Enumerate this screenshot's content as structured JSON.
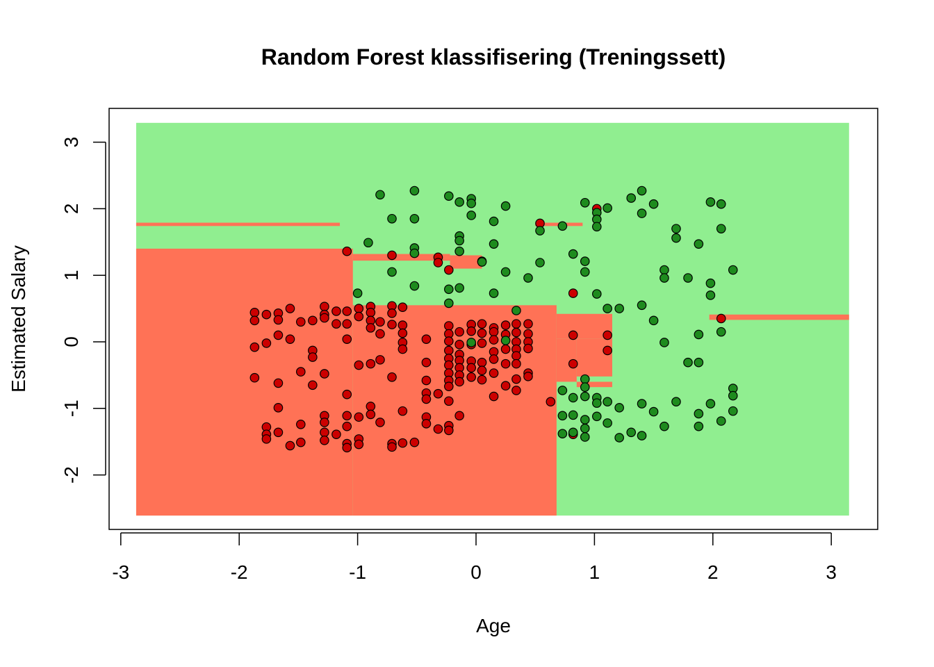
{
  "chart_data": {
    "type": "scatter",
    "title": "Random Forest klassifisering (Treningssett)",
    "xlabel": "Age",
    "ylabel": "Estimated Salary",
    "xlim": [
      -3.0,
      3.2
    ],
    "ylim": [
      -2.8,
      3.3
    ],
    "x_ticks": [
      -3,
      -2,
      -1,
      0,
      1,
      2,
      3
    ],
    "y_ticks": [
      -2,
      -1,
      0,
      1,
      2,
      3
    ],
    "x_tick_labels": [
      "-3",
      "-2",
      "-1",
      "0",
      "1",
      "2",
      "3"
    ],
    "y_tick_labels": [
      "-2",
      "-1",
      "0",
      "1",
      "2",
      "3"
    ],
    "grid": false,
    "legend": "none",
    "colors": {
      "region_0": "#FF7256",
      "region_1": "#90EE90",
      "point_0": "#CC0000",
      "point_1": "#1E8B1E",
      "point_stroke": "#000000",
      "frame": "#000000"
    },
    "decision_regions": [
      {
        "class": 1,
        "x": [
          -2.87,
          3.15
        ],
        "y": [
          -2.61,
          3.29
        ]
      },
      {
        "class": 0,
        "x": [
          -2.87,
          -1.04
        ],
        "y": [
          -2.61,
          1.4
        ]
      },
      {
        "class": 0,
        "x": [
          -1.04,
          0.68
        ],
        "y": [
          -2.61,
          0.55
        ]
      },
      {
        "class": 0,
        "x": [
          0.68,
          1.15
        ],
        "y": [
          0.05,
          0.42
        ]
      },
      {
        "class": 0,
        "x": [
          0.68,
          0.85
        ],
        "y": [
          -0.6,
          0.05
        ]
      },
      {
        "class": 0,
        "x": [
          0.85,
          1.15
        ],
        "y": [
          -0.52,
          0.05
        ]
      },
      {
        "class": 0,
        "x": [
          0.85,
          1.15
        ],
        "y": [
          -0.68,
          -0.6
        ]
      },
      {
        "class": 0,
        "x": [
          -2.87,
          -1.15
        ],
        "y": [
          1.74,
          1.79
        ]
      },
      {
        "class": 0,
        "x": [
          -1.04,
          -0.22
        ],
        "y": [
          1.22,
          1.32
        ]
      },
      {
        "class": 0,
        "x": [
          -0.22,
          0.05
        ],
        "y": [
          1.1,
          1.3
        ]
      },
      {
        "class": 0,
        "x": [
          0.5,
          0.9
        ],
        "y": [
          1.74,
          1.79
        ]
      },
      {
        "class": 0,
        "x": [
          1.97,
          3.15
        ],
        "y": [
          0.33,
          0.41
        ]
      }
    ],
    "series": [
      {
        "class": 0,
        "points": [
          [
            -1.87,
            0.44
          ],
          [
            -1.87,
            0.32
          ],
          [
            -1.87,
            -0.08
          ],
          [
            -1.87,
            -0.54
          ],
          [
            -1.77,
            0.41
          ],
          [
            -1.77,
            -0.02
          ],
          [
            -1.77,
            -1.28
          ],
          [
            -1.77,
            -1.39
          ],
          [
            -1.77,
            -1.46
          ],
          [
            -1.67,
            0.43
          ],
          [
            -1.67,
            0.33
          ],
          [
            -1.67,
            0.1
          ],
          [
            -1.67,
            -0.62
          ],
          [
            -1.67,
            -0.99
          ],
          [
            -1.67,
            -1.36
          ],
          [
            -1.57,
            0.5
          ],
          [
            -1.57,
            0.04
          ],
          [
            -1.57,
            -1.56
          ],
          [
            -1.48,
            0.3
          ],
          [
            -1.48,
            -0.45
          ],
          [
            -1.48,
            -1.24
          ],
          [
            -1.48,
            -1.51
          ],
          [
            -1.38,
            0.32
          ],
          [
            -1.38,
            -0.13
          ],
          [
            -1.38,
            -0.23
          ],
          [
            -1.38,
            -0.65
          ],
          [
            -1.28,
            0.53
          ],
          [
            -1.28,
            0.41
          ],
          [
            -1.28,
            0.36
          ],
          [
            -1.28,
            -0.48
          ],
          [
            -1.28,
            -1.11
          ],
          [
            -1.28,
            -1.21
          ],
          [
            -1.28,
            -1.36
          ],
          [
            -1.28,
            -1.48
          ],
          [
            -1.18,
            0.46
          ],
          [
            -1.18,
            0.27
          ],
          [
            -1.18,
            -1.39
          ],
          [
            -1.09,
            1.36
          ],
          [
            -1.09,
            0.46
          ],
          [
            -1.09,
            0.27
          ],
          [
            -1.09,
            0.04
          ],
          [
            -1.09,
            -0.79
          ],
          [
            -1.09,
            -1.11
          ],
          [
            -1.09,
            -1.27
          ],
          [
            -1.09,
            -1.53
          ],
          [
            -1.09,
            -1.59
          ],
          [
            -0.99,
            0.5
          ],
          [
            -0.99,
            0.38
          ],
          [
            -0.99,
            -0.35
          ],
          [
            -0.99,
            -1.13
          ],
          [
            -0.99,
            -1.46
          ],
          [
            -0.99,
            -1.54
          ],
          [
            -0.89,
            0.53
          ],
          [
            -0.89,
            0.44
          ],
          [
            -0.89,
            0.32
          ],
          [
            -0.89,
            0.21
          ],
          [
            -0.89,
            -0.33
          ],
          [
            -0.89,
            -0.97
          ],
          [
            -0.89,
            -1.09
          ],
          [
            -0.81,
            0.3
          ],
          [
            -0.81,
            0.12
          ],
          [
            -0.81,
            -0.27
          ],
          [
            -0.81,
            -1.21
          ],
          [
            -0.71,
            1.3
          ],
          [
            -0.71,
            0.54
          ],
          [
            -0.71,
            0.43
          ],
          [
            -0.71,
            0.26
          ],
          [
            -0.71,
            -0.53
          ],
          [
            -0.71,
            -1.53
          ],
          [
            -0.71,
            -1.58
          ],
          [
            -0.62,
            0.52
          ],
          [
            -0.62,
            0.25
          ],
          [
            -0.62,
            0.13
          ],
          [
            -0.62,
            -0.01
          ],
          [
            -0.62,
            -0.11
          ],
          [
            -0.62,
            -1.04
          ],
          [
            -0.62,
            -1.52
          ],
          [
            -0.52,
            -1.51
          ],
          [
            -0.42,
            0.04
          ],
          [
            -0.42,
            -0.31
          ],
          [
            -0.42,
            -0.58
          ],
          [
            -0.42,
            -0.77
          ],
          [
            -0.42,
            -0.86
          ],
          [
            -0.42,
            -1.13
          ],
          [
            -0.42,
            -1.23
          ],
          [
            -0.32,
            1.27
          ],
          [
            -0.32,
            1.19
          ],
          [
            -0.32,
            -0.78
          ],
          [
            -0.32,
            -1.31
          ],
          [
            -0.23,
            1.08
          ],
          [
            -0.23,
            0.24
          ],
          [
            -0.23,
            0.12
          ],
          [
            -0.23,
            0.01
          ],
          [
            -0.23,
            -0.13
          ],
          [
            -0.23,
            -0.25
          ],
          [
            -0.23,
            -0.35
          ],
          [
            -0.23,
            -0.47
          ],
          [
            -0.23,
            -0.58
          ],
          [
            -0.23,
            -0.67
          ],
          [
            -0.23,
            -0.89
          ],
          [
            -0.23,
            -1.26
          ],
          [
            -0.23,
            -1.33
          ],
          [
            -0.14,
            0.15
          ],
          [
            -0.14,
            -0.04
          ],
          [
            -0.14,
            -0.19
          ],
          [
            -0.14,
            -0.28
          ],
          [
            -0.14,
            -0.39
          ],
          [
            -0.14,
            -0.5
          ],
          [
            -0.14,
            -0.6
          ],
          [
            -0.14,
            -1.11
          ],
          [
            -0.04,
            0.26
          ],
          [
            -0.04,
            0.16
          ],
          [
            -0.04,
            -0.04
          ],
          [
            -0.04,
            -0.29
          ],
          [
            -0.04,
            -0.39
          ],
          [
            -0.04,
            -0.53
          ],
          [
            0.05,
            1.21
          ],
          [
            0.05,
            0.27
          ],
          [
            0.05,
            0.13
          ],
          [
            0.05,
            -0.02
          ],
          [
            0.05,
            -0.31
          ],
          [
            0.05,
            -0.43
          ],
          [
            0.05,
            -0.57
          ],
          [
            0.15,
            0.21
          ],
          [
            0.15,
            0.15
          ],
          [
            0.15,
            0.03
          ],
          [
            0.15,
            -0.15
          ],
          [
            0.15,
            -0.26
          ],
          [
            0.15,
            -0.47
          ],
          [
            0.15,
            -0.82
          ],
          [
            0.25,
            0.25
          ],
          [
            0.25,
            0.11
          ],
          [
            0.25,
            -0.11
          ],
          [
            0.25,
            -0.33
          ],
          [
            0.25,
            -0.66
          ],
          [
            0.34,
            0.27
          ],
          [
            0.34,
            0.14
          ],
          [
            0.34,
            0.0
          ],
          [
            0.34,
            -0.11
          ],
          [
            0.34,
            -0.21
          ],
          [
            0.34,
            -0.33
          ],
          [
            0.34,
            -0.56
          ],
          [
            0.34,
            -0.73
          ],
          [
            0.44,
            0.27
          ],
          [
            0.44,
            0.12
          ],
          [
            0.44,
            0.0
          ],
          [
            0.44,
            -0.1
          ],
          [
            0.44,
            -0.47
          ],
          [
            0.44,
            -0.52
          ],
          [
            0.54,
            1.78
          ],
          [
            0.63,
            -0.9
          ],
          [
            0.82,
            0.73
          ],
          [
            0.82,
            0.1
          ],
          [
            0.82,
            -0.33
          ],
          [
            0.82,
            -1.37
          ],
          [
            0.82,
            -1.39
          ],
          [
            1.02,
            2.0
          ],
          [
            1.11,
            0.1
          ],
          [
            1.11,
            -0.13
          ],
          [
            2.07,
            0.35
          ]
        ]
      },
      {
        "class": 1,
        "points": [
          [
            -1.0,
            0.73
          ],
          [
            -0.91,
            1.49
          ],
          [
            -0.81,
            2.21
          ],
          [
            -0.71,
            1.85
          ],
          [
            -0.71,
            1.05
          ],
          [
            -0.52,
            2.27
          ],
          [
            -0.52,
            1.85
          ],
          [
            -0.52,
            1.41
          ],
          [
            -0.52,
            1.33
          ],
          [
            -0.52,
            0.84
          ],
          [
            -0.23,
            2.19
          ],
          [
            -0.23,
            0.79
          ],
          [
            -0.23,
            0.58
          ],
          [
            -0.14,
            2.1
          ],
          [
            -0.14,
            1.59
          ],
          [
            -0.14,
            1.52
          ],
          [
            -0.14,
            1.36
          ],
          [
            -0.14,
            0.81
          ],
          [
            -0.04,
            2.15
          ],
          [
            -0.04,
            2.08
          ],
          [
            -0.04,
            1.9
          ],
          [
            -0.04,
            -0.01
          ],
          [
            0.05,
            1.2
          ],
          [
            0.15,
            1.81
          ],
          [
            0.15,
            1.47
          ],
          [
            0.15,
            0.73
          ],
          [
            0.25,
            2.04
          ],
          [
            0.25,
            1.05
          ],
          [
            0.25,
            0.02
          ],
          [
            0.34,
            0.47
          ],
          [
            0.44,
            0.96
          ],
          [
            0.54,
            1.67
          ],
          [
            0.54,
            1.19
          ],
          [
            0.73,
            1.74
          ],
          [
            0.73,
            -0.73
          ],
          [
            0.73,
            -1.11
          ],
          [
            0.73,
            -1.38
          ],
          [
            0.82,
            1.32
          ],
          [
            0.82,
            -0.84
          ],
          [
            0.82,
            -1.1
          ],
          [
            0.82,
            -1.36
          ],
          [
            0.92,
            2.09
          ],
          [
            0.92,
            1.21
          ],
          [
            0.92,
            1.05
          ],
          [
            0.92,
            -0.56
          ],
          [
            0.92,
            -0.68
          ],
          [
            0.92,
            -0.82
          ],
          [
            0.92,
            -1.17
          ],
          [
            0.92,
            -1.3
          ],
          [
            0.92,
            -1.43
          ],
          [
            1.02,
            1.94
          ],
          [
            1.02,
            1.84
          ],
          [
            1.02,
            1.73
          ],
          [
            1.02,
            0.72
          ],
          [
            1.02,
            -0.84
          ],
          [
            1.02,
            -0.92
          ],
          [
            1.02,
            -1.12
          ],
          [
            1.11,
            2.01
          ],
          [
            1.11,
            0.5
          ],
          [
            1.11,
            -0.9
          ],
          [
            1.11,
            -1.22
          ],
          [
            1.21,
            0.5
          ],
          [
            1.21,
            -0.99
          ],
          [
            1.21,
            -1.44
          ],
          [
            1.31,
            2.16
          ],
          [
            1.31,
            -1.36
          ],
          [
            1.4,
            2.27
          ],
          [
            1.4,
            1.93
          ],
          [
            1.4,
            0.55
          ],
          [
            1.4,
            -0.93
          ],
          [
            1.4,
            -1.41
          ],
          [
            1.5,
            2.07
          ],
          [
            1.5,
            0.32
          ],
          [
            1.5,
            -1.05
          ],
          [
            1.59,
            1.08
          ],
          [
            1.59,
            0.96
          ],
          [
            1.59,
            -0.01
          ],
          [
            1.59,
            -1.27
          ],
          [
            1.69,
            1.7
          ],
          [
            1.69,
            1.56
          ],
          [
            1.69,
            -0.9
          ],
          [
            1.79,
            0.96
          ],
          [
            1.79,
            -0.31
          ],
          [
            1.88,
            1.47
          ],
          [
            1.88,
            0.11
          ],
          [
            1.88,
            -0.31
          ],
          [
            1.88,
            -1.08
          ],
          [
            1.88,
            -1.27
          ],
          [
            1.98,
            2.1
          ],
          [
            1.98,
            0.88
          ],
          [
            1.98,
            0.7
          ],
          [
            1.98,
            -0.93
          ],
          [
            2.07,
            2.07
          ],
          [
            2.07,
            1.7
          ],
          [
            2.07,
            0.15
          ],
          [
            2.07,
            -1.19
          ],
          [
            2.17,
            1.08
          ],
          [
            2.17,
            -0.7
          ],
          [
            2.17,
            -0.81
          ],
          [
            2.17,
            -1.04
          ]
        ]
      }
    ]
  }
}
